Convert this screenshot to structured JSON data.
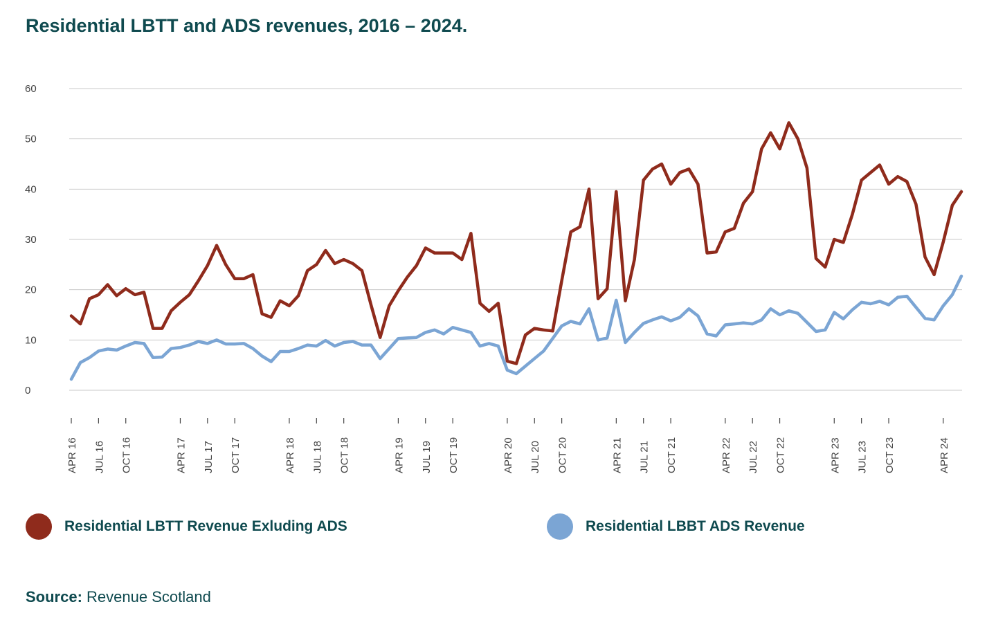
{
  "title": "Residential LBTT and ADS revenues, 2016 – 2024.",
  "source": {
    "label": "Source:",
    "text": "Revenue Scotland"
  },
  "chart_data": {
    "type": "line",
    "title": "Residential LBTT and ADS revenues, 2016 – 2024.",
    "xlabel": "",
    "ylabel": "",
    "ylim": [
      0,
      60
    ],
    "yticks": [
      0,
      10,
      20,
      30,
      40,
      50,
      60
    ],
    "grid": true,
    "legend_position": "bottom",
    "x_ticks": [
      "APR 16",
      "JUL 16",
      "OCT 16",
      "APR 17",
      "JUL 17",
      "OCT 17",
      "APR 18",
      "JUL 18",
      "OCT 18",
      "APR 19",
      "JUL 19",
      "OCT 19",
      "APR 20",
      "JUL 20",
      "OCT 20",
      "APR 21",
      "JUL 21",
      "OCT 21",
      "APR 22",
      "JUL 22",
      "OCT 22",
      "APR 23",
      "JUL 23",
      "OCT 23",
      "APR 24"
    ],
    "x_tick_months": [
      0,
      3,
      6,
      12,
      15,
      18,
      24,
      27,
      30,
      36,
      39,
      42,
      48,
      51,
      54,
      60,
      63,
      66,
      72,
      75,
      78,
      84,
      87,
      90,
      96
    ],
    "series": [
      {
        "name": "Residential LBTT Revenue Exluding ADS",
        "color": "#8f2b1c",
        "values": [
          14.8,
          13.2,
          18.2,
          19.0,
          21.0,
          18.8,
          20.2,
          19.0,
          19.5,
          12.3,
          12.3,
          15.8,
          17.5,
          19.0,
          21.8,
          24.8,
          28.8,
          25.0,
          22.2,
          22.2,
          23.0,
          15.2,
          14.5,
          17.8,
          16.8,
          18.8,
          23.8,
          25.0,
          27.8,
          25.2,
          26.0,
          25.2,
          23.8,
          17.0,
          10.5,
          16.8,
          19.8,
          22.5,
          24.8,
          28.3,
          27.3,
          27.3,
          27.3,
          26.0,
          31.2,
          17.3,
          15.7,
          17.3,
          5.8,
          5.3,
          11.0,
          12.3,
          12.0,
          11.8,
          21.8,
          31.5,
          32.5,
          40.0,
          18.2,
          20.2,
          39.5,
          17.8,
          26.0,
          41.8,
          44.0,
          45.0,
          41.0,
          43.3,
          44.0,
          41.0,
          27.3,
          27.5,
          31.5,
          32.2,
          37.2,
          39.5,
          48.0,
          51.2,
          48.0,
          53.2,
          50.0,
          44.2,
          26.2,
          24.5,
          30.0,
          29.4,
          35.0,
          41.8,
          43.3,
          44.8,
          41.0,
          42.5,
          41.5,
          37.0,
          26.5,
          23.0,
          29.5,
          36.8,
          39.5
        ]
      },
      {
        "name": "Residential LBBT ADS Revenue",
        "color": "#7ba5d4",
        "values": [
          2.2,
          5.5,
          6.5,
          7.8,
          8.2,
          8.0,
          8.8,
          9.5,
          9.3,
          6.5,
          6.6,
          8.3,
          8.5,
          9.0,
          9.7,
          9.3,
          10.0,
          9.2,
          9.2,
          9.3,
          8.3,
          6.8,
          5.7,
          7.7,
          7.7,
          8.3,
          9.0,
          8.8,
          9.9,
          8.8,
          9.5,
          9.7,
          9.0,
          9.0,
          6.3,
          8.3,
          10.3,
          10.4,
          10.5,
          11.5,
          12.0,
          11.2,
          12.5,
          12.0,
          11.5,
          8.8,
          9.3,
          8.8,
          4.0,
          3.3,
          4.8,
          6.3,
          7.8,
          10.3,
          12.8,
          13.7,
          13.2,
          16.2,
          10.0,
          10.4,
          17.9,
          9.5,
          11.5,
          13.3,
          14.0,
          14.6,
          13.8,
          14.5,
          16.2,
          14.8,
          11.2,
          10.8,
          13.0,
          13.2,
          13.4,
          13.2,
          14.0,
          16.2,
          15.0,
          15.8,
          15.3,
          13.5,
          11.7,
          12.0,
          15.5,
          14.2,
          16.0,
          17.5,
          17.2,
          17.7,
          17.0,
          18.5,
          18.7,
          16.5,
          14.3,
          14.0,
          16.8,
          19.0,
          22.7
        ]
      }
    ]
  }
}
